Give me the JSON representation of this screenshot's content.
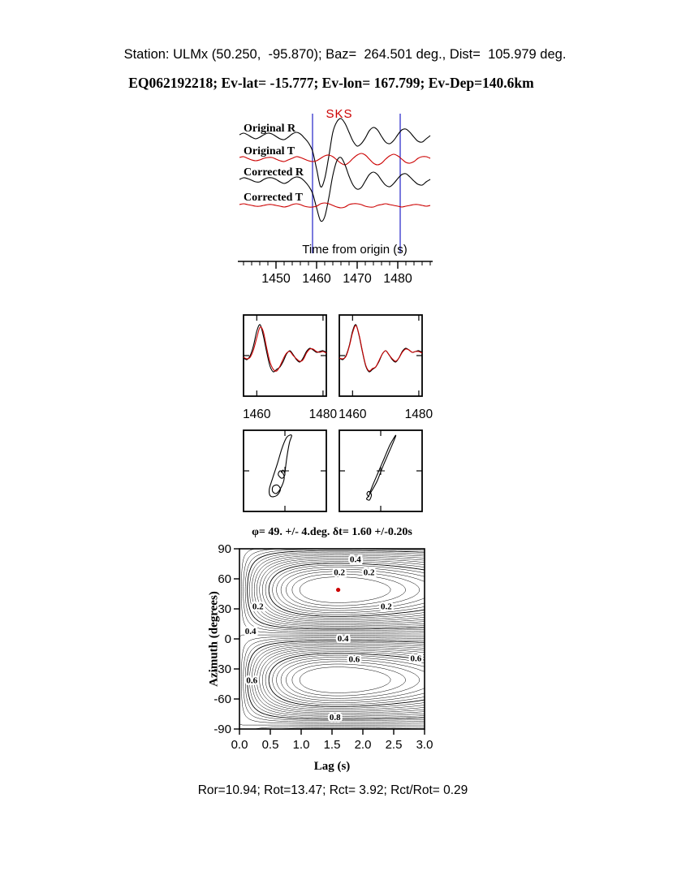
{
  "header": {
    "station_line": "Station: ULMx (50.250,  -95.870); Baz=  264.501 deg., Dist=  105.979 deg.",
    "event_line": "EQ062192218; Ev-lat= -15.777; Ev-lon= 167.799; Ev-Dep=140.6km"
  },
  "footer": "Ror=10.94; Rot=13.47; Rct= 3.92; Rct/Rot= 0.29",
  "colors": {
    "trace_black": "#000000",
    "trace_red": "#cc0000",
    "window_blue": "#3333cc",
    "marker_red": "#cc0000"
  },
  "chart_data": [
    {
      "id": "waveforms",
      "type": "line",
      "phase": "SKS",
      "xlabel": "Time from origin (s)",
      "xticks": [
        1450,
        1460,
        1470,
        1480
      ],
      "x_start": 1441,
      "x_step": 1,
      "window_s": [
        1459,
        1480.6
      ],
      "series": [
        {
          "name": "Original R",
          "color": "#000000",
          "values": [
            2,
            4,
            2,
            -1,
            -3,
            -1,
            2,
            4,
            3,
            0,
            -3,
            -4,
            -1,
            3,
            5,
            3,
            -2,
            -8,
            -18,
            -40,
            -62,
            -52,
            -25,
            5,
            18,
            22,
            16,
            5,
            -6,
            -12,
            -9,
            -2,
            7,
            11,
            8,
            0,
            -7,
            -9,
            -5,
            2,
            8,
            9,
            5,
            -1,
            -6,
            -7,
            -3,
            1
          ]
        },
        {
          "name": "Original T",
          "color": "#cc0000",
          "values": [
            2,
            3,
            1,
            -1,
            -2,
            -1,
            1,
            2,
            2,
            0,
            -2,
            -3,
            -1,
            1,
            3,
            2,
            0,
            -2,
            -3,
            -2,
            1,
            4,
            5,
            3,
            -1,
            -5,
            -7,
            -4,
            1,
            5,
            7,
            5,
            0,
            -5,
            -7,
            -5,
            0,
            4,
            6,
            4,
            0,
            -4,
            -5,
            -3,
            1,
            3,
            3,
            1
          ]
        },
        {
          "name": "Corrected R",
          "color": "#000000",
          "values": [
            1,
            3,
            2,
            0,
            -2,
            -2,
            1,
            3,
            3,
            1,
            -2,
            -4,
            -2,
            2,
            4,
            3,
            -1,
            -7,
            -16,
            -34,
            -50,
            -45,
            -22,
            6,
            24,
            28,
            19,
            5,
            -6,
            -11,
            -9,
            -1,
            7,
            10,
            7,
            0,
            -6,
            -8,
            -4,
            2,
            7,
            8,
            4,
            -1,
            -5,
            -6,
            -2,
            1
          ]
        },
        {
          "name": "Corrected T",
          "color": "#cc0000",
          "values": [
            1,
            2,
            1,
            0,
            -1,
            -1,
            0,
            1,
            1,
            0,
            -1,
            -2,
            -1,
            1,
            2,
            1,
            -1,
            -2,
            -2,
            -1,
            2,
            3,
            2,
            0,
            -2,
            -3,
            -2,
            1,
            2,
            2,
            1,
            -1,
            -2,
            -2,
            0,
            1,
            2,
            1,
            0,
            -1,
            -2,
            -1,
            0,
            1,
            1,
            0,
            -1,
            0
          ]
        }
      ]
    },
    {
      "id": "window-zoom",
      "type": "line",
      "x_start": 1456,
      "x_step": 1,
      "xticks": [
        1460,
        1480
      ],
      "panels": [
        {
          "series": [
            {
              "name": "series-1",
              "color": "#000000",
              "values": [
                -3,
                -5,
                0,
                12,
                30,
                38,
                24,
                4,
                -13,
                -20,
                -17,
                -14,
                -7,
                2,
                6,
                1,
                -5,
                -8,
                -3,
                5,
                9,
                7,
                4,
                5,
                6,
                4
              ]
            },
            {
              "name": "series-2",
              "color": "#cc0000",
              "values": [
                -2,
                -4,
                -2,
                7,
                22,
                35,
                29,
                9,
                -8,
                -17,
                -19,
                -13,
                -4,
                3,
                5,
                0,
                -4,
                -7,
                -5,
                3,
                8,
                8,
                5,
                4,
                5,
                3
              ]
            }
          ]
        },
        {
          "series": [
            {
              "name": "series-1",
              "color": "#000000",
              "values": [
                -3,
                -5,
                0,
                12,
                30,
                38,
                24,
                4,
                -13,
                -20,
                -17,
                -14,
                -7,
                2,
                6,
                1,
                -5,
                -8,
                -3,
                5,
                9,
                7,
                4,
                5,
                6,
                4
              ]
            },
            {
              "name": "series-2",
              "color": "#cc0000",
              "values": [
                -3,
                -4,
                -1,
                11,
                28,
                37,
                25,
                5,
                -12,
                -19,
                -16,
                -14,
                -6,
                2,
                6,
                1,
                -4,
                -7,
                -3,
                4,
                8,
                7,
                4,
                5,
                5,
                3
              ]
            }
          ]
        }
      ]
    },
    {
      "id": "particle-motion",
      "type": "scatter",
      "panels": [
        {
          "name": "original",
          "points": [
            [
              0.0,
              -0.05
            ],
            [
              0.05,
              0.35
            ],
            [
              0.12,
              0.75
            ],
            [
              0.18,
              0.95
            ],
            [
              0.05,
              0.9
            ],
            [
              -0.08,
              0.6
            ],
            [
              -0.2,
              0.2
            ],
            [
              -0.33,
              -0.2
            ],
            [
              -0.42,
              -0.5
            ],
            [
              -0.38,
              -0.68
            ],
            [
              -0.22,
              -0.66
            ],
            [
              -0.12,
              -0.5
            ],
            [
              -0.2,
              -0.38
            ],
            [
              -0.32,
              -0.42
            ],
            [
              -0.33,
              -0.55
            ],
            [
              -0.22,
              -0.6
            ],
            [
              -0.08,
              -0.4
            ],
            [
              -0.02,
              -0.15
            ],
            [
              -0.12,
              0.0
            ],
            [
              -0.18,
              -0.1
            ],
            [
              -0.08,
              -0.2
            ],
            [
              0.0,
              -0.1
            ],
            [
              -0.05,
              0.02
            ],
            [
              -0.1,
              -0.05
            ]
          ]
        },
        {
          "name": "corrected",
          "points": [
            [
              -0.3,
              -0.6
            ],
            [
              -0.2,
              -0.35
            ],
            [
              -0.05,
              0.0
            ],
            [
              0.1,
              0.35
            ],
            [
              0.25,
              0.7
            ],
            [
              0.4,
              0.95
            ],
            [
              0.35,
              0.8
            ],
            [
              0.2,
              0.45
            ],
            [
              0.05,
              0.1
            ],
            [
              -0.1,
              -0.28
            ],
            [
              -0.25,
              -0.55
            ],
            [
              -0.33,
              -0.68
            ],
            [
              -0.38,
              -0.75
            ],
            [
              -0.3,
              -0.78
            ],
            [
              -0.25,
              -0.64
            ],
            [
              -0.32,
              -0.55
            ],
            [
              -0.37,
              -0.62
            ],
            [
              -0.31,
              -0.7
            ]
          ]
        }
      ]
    },
    {
      "id": "error-surface",
      "type": "contour",
      "title": "φ= 49. +/- 4.deg. δt= 1.60 +/-0.20s",
      "xlabel": "Lag (s)",
      "ylabel": "Azimuth (degrees)",
      "xlim": [
        0,
        3
      ],
      "ylim": [
        -90,
        90
      ],
      "xticks": [
        "0.0",
        "0.5",
        "1.0",
        "1.5",
        "2.0",
        "2.5",
        "3.0"
      ],
      "yticks": [
        90,
        60,
        30,
        0,
        -30,
        -60,
        -90
      ],
      "best_azimuth_deg": 49,
      "best_azimuth_err_deg": 4,
      "best_lag_s": 1.6,
      "best_lag_err_s": 0.2,
      "levels": {
        "min": 0.05,
        "max": 0.95,
        "step": 0.025
      },
      "label_contours": [
        "0.2",
        "0.4",
        "0.6",
        "0.8"
      ],
      "contour_labels": [
        {
          "text": "0.4",
          "lag": 1.88,
          "az": 80
        },
        {
          "text": "0.2",
          "lag": 1.62,
          "az": 67
        },
        {
          "text": "0.2",
          "lag": 2.1,
          "az": 67
        },
        {
          "text": "0.2",
          "lag": 0.3,
          "az": 33
        },
        {
          "text": "0.2",
          "lag": 2.38,
          "az": 33
        },
        {
          "text": "0.4",
          "lag": 0.18,
          "az": 8
        },
        {
          "text": "0.4",
          "lag": 1.68,
          "az": 1
        },
        {
          "text": "0.6",
          "lag": 1.86,
          "az": -20
        },
        {
          "text": "0.6",
          "lag": 2.86,
          "az": -19
        },
        {
          "text": "0.6",
          "lag": 0.2,
          "az": -41
        },
        {
          "text": "0.8",
          "lag": 1.55,
          "az": -78
        }
      ],
      "marker": {
        "lag": 1.6,
        "az": 49,
        "color": "#cc0000"
      }
    }
  ]
}
